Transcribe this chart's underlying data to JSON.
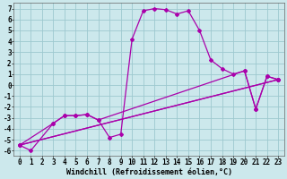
{
  "background_color": "#cce8ec",
  "grid_color": "#9dc8cf",
  "line_color": "#aa00aa",
  "marker": "D",
  "markersize": 2,
  "linewidth": 0.9,
  "xlabel": "Windchill (Refroidissement éolien,°C)",
  "xlabel_fontsize": 6,
  "tick_fontsize": 5.5,
  "xlim": [
    -0.5,
    23.5
  ],
  "ylim": [
    -6.5,
    7.5
  ],
  "xticks": [
    0,
    1,
    2,
    3,
    4,
    5,
    6,
    7,
    8,
    9,
    10,
    11,
    12,
    13,
    14,
    15,
    16,
    17,
    18,
    19,
    20,
    21,
    22,
    23
  ],
  "yticks": [
    -6,
    -5,
    -4,
    -3,
    -2,
    -1,
    0,
    1,
    2,
    3,
    4,
    5,
    6,
    7
  ],
  "series": [
    {
      "x": [
        0,
        1,
        3,
        4,
        5,
        6,
        7,
        8,
        9,
        10,
        11,
        12,
        13,
        14,
        15,
        16,
        17,
        18,
        19,
        20,
        21,
        22,
        23
      ],
      "y": [
        -5.5,
        -6.0,
        -3.5,
        -2.8,
        -2.8,
        -2.7,
        -3.2,
        -4.8,
        -4.5,
        4.2,
        6.8,
        7.0,
        6.9,
        6.5,
        6.8,
        5.0,
        2.3,
        1.5,
        1.0,
        1.3,
        -2.2,
        0.8,
        0.5
      ]
    },
    {
      "x": [
        0,
        3,
        4,
        5,
        6,
        7,
        20,
        21,
        22,
        23
      ],
      "y": [
        -5.5,
        -3.5,
        -2.8,
        -2.8,
        -2.7,
        -3.2,
        1.3,
        -2.2,
        0.8,
        0.5
      ]
    },
    {
      "x": [
        0,
        23
      ],
      "y": [
        -5.5,
        0.5
      ]
    },
    {
      "x": [
        0,
        23
      ],
      "y": [
        -5.5,
        0.5
      ]
    }
  ]
}
